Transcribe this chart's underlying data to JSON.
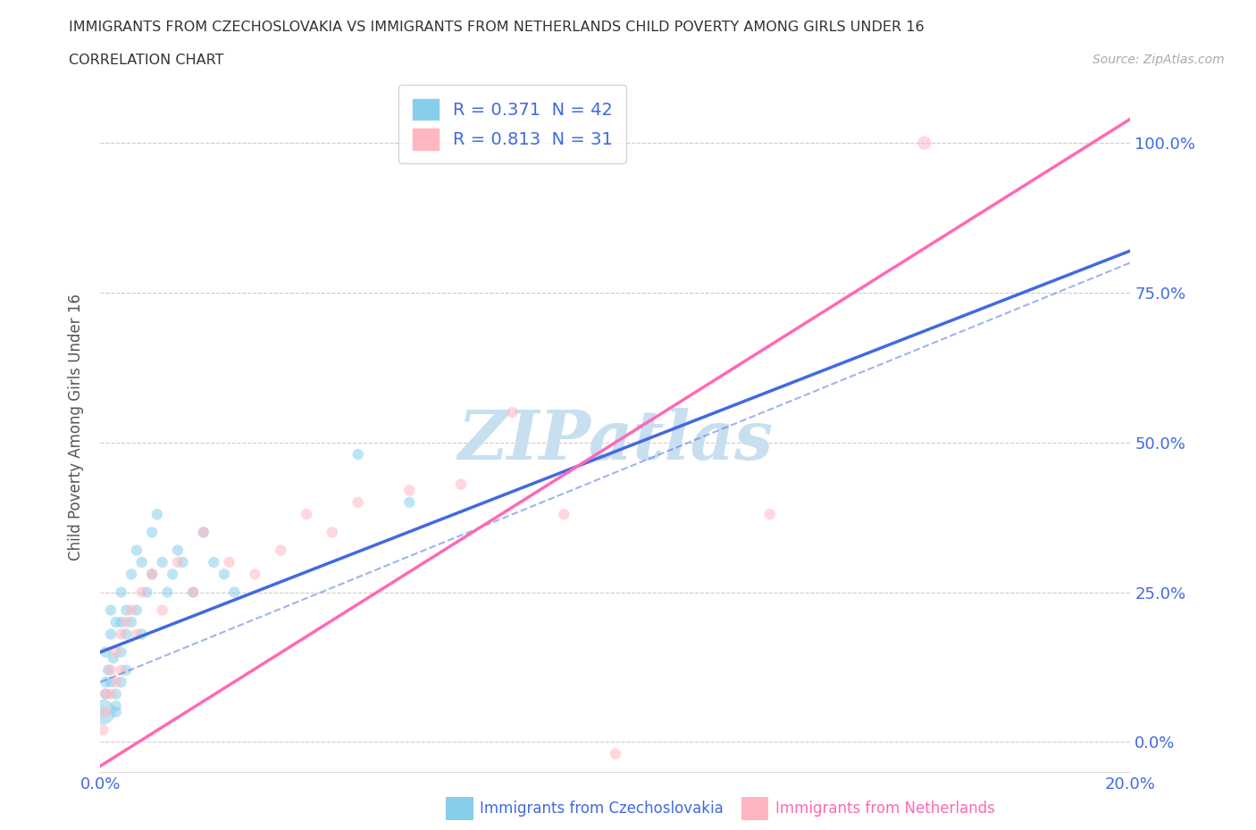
{
  "title": "IMMIGRANTS FROM CZECHOSLOVAKIA VS IMMIGRANTS FROM NETHERLANDS CHILD POVERTY AMONG GIRLS UNDER 16",
  "subtitle": "CORRELATION CHART",
  "source": "Source: ZipAtlas.com",
  "ylabel": "Child Poverty Among Girls Under 16",
  "xlim": [
    0.0,
    0.2
  ],
  "ylim": [
    -0.05,
    1.1
  ],
  "yticks": [
    0.0,
    0.25,
    0.5,
    0.75,
    1.0
  ],
  "ytick_labels": [
    "0.0%",
    "25.0%",
    "50.0%",
    "75.0%",
    "100.0%"
  ],
  "xticks": [
    0.0,
    0.05,
    0.1,
    0.15,
    0.2
  ],
  "xtick_labels": [
    "0.0%",
    "",
    "",
    "",
    "20.0%"
  ],
  "r_czech": 0.371,
  "n_czech": 42,
  "r_neth": 0.813,
  "n_neth": 31,
  "color_czech": "#87CEEB",
  "color_neth": "#FFB6C1",
  "line_color_czech": "#4169E1",
  "line_color_neth": "#FF69B4",
  "trendline_czech_x0": 0.0,
  "trendline_czech_y0": 0.15,
  "trendline_czech_x1": 0.2,
  "trendline_czech_y1": 0.82,
  "trendline_neth_x0": 0.0,
  "trendline_neth_y0": -0.04,
  "trendline_neth_x1": 0.2,
  "trendline_neth_y1": 1.04,
  "watermark": "ZIPatlas",
  "legend_label_czech": "Immigrants from Czechoslovakia",
  "legend_label_neth": "Immigrants from Netherlands",
  "scatter_czech_x": [
    0.0005,
    0.001,
    0.001,
    0.001,
    0.0015,
    0.002,
    0.002,
    0.002,
    0.0025,
    0.003,
    0.003,
    0.003,
    0.003,
    0.004,
    0.004,
    0.004,
    0.004,
    0.005,
    0.005,
    0.005,
    0.006,
    0.006,
    0.007,
    0.007,
    0.008,
    0.008,
    0.009,
    0.01,
    0.01,
    0.011,
    0.012,
    0.013,
    0.014,
    0.015,
    0.016,
    0.018,
    0.02,
    0.022,
    0.024,
    0.026,
    0.05,
    0.06
  ],
  "scatter_czech_y": [
    0.05,
    0.1,
    0.15,
    0.08,
    0.12,
    0.18,
    0.22,
    0.1,
    0.14,
    0.2,
    0.08,
    0.06,
    0.05,
    0.25,
    0.2,
    0.15,
    0.1,
    0.22,
    0.18,
    0.12,
    0.28,
    0.2,
    0.32,
    0.22,
    0.3,
    0.18,
    0.25,
    0.35,
    0.28,
    0.38,
    0.3,
    0.25,
    0.28,
    0.32,
    0.3,
    0.25,
    0.35,
    0.3,
    0.28,
    0.25,
    0.48,
    0.4
  ],
  "scatter_czech_size": [
    400,
    80,
    80,
    80,
    80,
    80,
    80,
    80,
    80,
    80,
    80,
    80,
    80,
    80,
    80,
    80,
    80,
    80,
    80,
    80,
    80,
    80,
    80,
    80,
    80,
    80,
    80,
    80,
    80,
    80,
    80,
    80,
    80,
    80,
    80,
    80,
    80,
    80,
    80,
    80,
    80,
    80
  ],
  "scatter_neth_x": [
    0.0005,
    0.001,
    0.001,
    0.002,
    0.002,
    0.003,
    0.003,
    0.004,
    0.004,
    0.005,
    0.006,
    0.007,
    0.008,
    0.01,
    0.012,
    0.015,
    0.018,
    0.02,
    0.025,
    0.03,
    0.035,
    0.04,
    0.045,
    0.05,
    0.06,
    0.07,
    0.08,
    0.09,
    0.1,
    0.13,
    0.16
  ],
  "scatter_neth_y": [
    0.02,
    0.05,
    0.08,
    0.12,
    0.08,
    0.15,
    0.1,
    0.18,
    0.12,
    0.2,
    0.22,
    0.18,
    0.25,
    0.28,
    0.22,
    0.3,
    0.25,
    0.35,
    0.3,
    0.28,
    0.32,
    0.38,
    0.35,
    0.4,
    0.42,
    0.43,
    0.55,
    0.38,
    -0.02,
    0.38,
    1.0
  ],
  "scatter_neth_size": [
    80,
    80,
    80,
    80,
    80,
    80,
    80,
    80,
    80,
    80,
    80,
    80,
    80,
    80,
    80,
    80,
    80,
    80,
    80,
    80,
    80,
    80,
    80,
    80,
    80,
    80,
    80,
    80,
    80,
    80,
    120
  ],
  "background_color": "#ffffff",
  "grid_color": "#cccccc",
  "title_color": "#333333",
  "axis_label_color": "#555555",
  "tick_color": "#4169E1",
  "watermark_color": "#c8dff0"
}
